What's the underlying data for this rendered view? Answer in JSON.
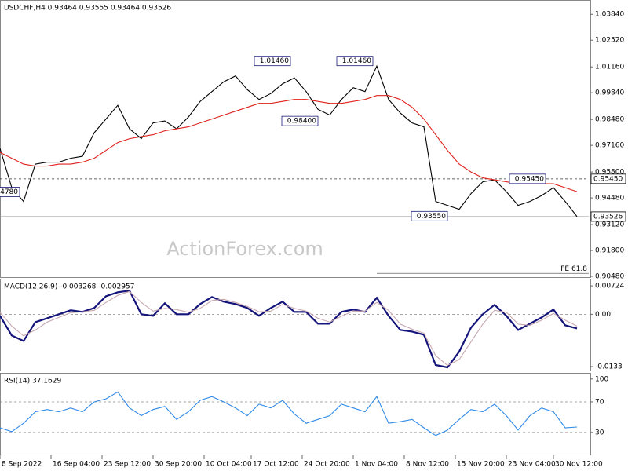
{
  "chart_data": [
    {
      "type": "line",
      "title": "USDCHF,H4 0.93464 0.93555 0.93464 0.93526",
      "watermark": "ActionForex.com",
      "x": [
        0,
        3,
        6,
        9,
        12,
        15,
        18,
        21,
        24,
        27,
        30,
        33,
        36,
        39,
        42,
        45,
        48,
        51,
        54,
        57,
        60,
        63,
        66,
        69,
        72,
        75,
        78,
        81,
        84,
        87,
        90,
        93,
        96,
        99,
        102,
        105,
        108,
        111,
        114,
        117,
        120,
        123,
        126,
        129,
        132,
        135,
        138,
        141,
        144,
        147
      ],
      "series": [
        {
          "color": "#000000",
          "values": [
            0.97,
            0.95,
            0.943,
            0.962,
            0.963,
            0.963,
            0.965,
            0.966,
            0.978,
            0.985,
            0.992,
            0.98,
            0.975,
            0.983,
            0.984,
            0.98,
            0.986,
            0.994,
            0.999,
            1.004,
            1.007,
            1.0,
            0.995,
            0.998,
            1.003,
            1.006,
            0.999,
            0.99,
            0.987,
            0.995,
            1.001,
            0.999,
            1.012,
            0.995,
            0.988,
            0.983,
            0.981,
            0.943,
            0.941,
            0.939,
            0.947,
            0.953,
            0.954,
            0.948,
            0.941,
            0.943,
            0.946,
            0.95,
            0.943,
            0.9353
          ]
        },
        {
          "color": "#e0201b",
          "values": [
            0.968,
            0.965,
            0.962,
            0.961,
            0.961,
            0.962,
            0.962,
            0.963,
            0.965,
            0.969,
            0.973,
            0.975,
            0.976,
            0.977,
            0.979,
            0.98,
            0.981,
            0.983,
            0.985,
            0.987,
            0.989,
            0.991,
            0.993,
            0.993,
            0.994,
            0.995,
            0.995,
            0.994,
            0.993,
            0.993,
            0.994,
            0.995,
            0.997,
            0.997,
            0.995,
            0.991,
            0.985,
            0.977,
            0.969,
            0.962,
            0.958,
            0.955,
            0.954,
            0.953,
            0.952,
            0.952,
            0.952,
            0.952,
            0.95,
            0.948
          ]
        }
      ],
      "xlim": [
        0,
        150
      ],
      "ylim": [
        0.904,
        1.0453
      ],
      "yticks": [
        {
          "value": 1.0384,
          "label": "1.03840"
        },
        {
          "value": 1.0252,
          "label": "1.02520"
        },
        {
          "value": 1.0116,
          "label": "1.01160"
        },
        {
          "value": 0.9984,
          "label": "0.99840"
        },
        {
          "value": 0.9848,
          "label": "0.98480"
        },
        {
          "value": 0.9716,
          "label": "0.97160"
        },
        {
          "value": 0.958,
          "label": "0.95800"
        },
        {
          "value": 0.9448,
          "label": "0.94480"
        },
        {
          "value": 0.9312,
          "label": "0.93120"
        },
        {
          "value": 0.918,
          "label": "0.91800"
        },
        {
          "value": 0.9048,
          "label": "0.90480"
        }
      ],
      "hlines": [
        {
          "value": 0.9545,
          "label": "0.95450",
          "dashed": true
        },
        {
          "value": 0.93526,
          "label": "0.93526",
          "dashed": false
        }
      ],
      "fibo": {
        "label": "FE 61.8",
        "value": 0.9063,
        "x0": 96,
        "x1": 150
      },
      "annotations": [
        {
          "text": "1.01460",
          "x": 74,
          "y": 1.0146
        },
        {
          "text": "1.01460",
          "x": 95,
          "y": 1.0146
        },
        {
          "text": "0.98400",
          "x": 81,
          "y": 0.984
        },
        {
          "text": "0.95450",
          "x": 139,
          "y": 0.9545
        },
        {
          "text": "0.93550",
          "x": 114,
          "y": 0.9355
        },
        {
          "text": "4780",
          "x": 5,
          "y": 0.9478
        }
      ]
    },
    {
      "type": "line",
      "title": "MACD(12,26,9) -0.003268 -0.002957",
      "x": [
        0,
        3,
        6,
        9,
        12,
        15,
        18,
        21,
        24,
        27,
        30,
        33,
        36,
        39,
        42,
        45,
        48,
        51,
        54,
        57,
        60,
        63,
        66,
        69,
        72,
        75,
        78,
        81,
        84,
        87,
        90,
        93,
        96,
        99,
        102,
        105,
        108,
        111,
        114,
        117,
        120,
        123,
        126,
        129,
        132,
        135,
        138,
        141,
        144,
        147
      ],
      "series": [
        {
          "color": "#14147a",
          "values": [
            -0.0004,
            -0.0054,
            -0.0068,
            -0.002,
            -0.001,
            0,
            0.001,
            0.0006,
            0.0016,
            0.0046,
            0.0056,
            0.006,
            0,
            -0.0004,
            0.0028,
            0,
            0,
            0.0026,
            0.0044,
            0.0032,
            0.0026,
            0.0016,
            -0.0004,
            0.0016,
            0.0032,
            0.0006,
            0.0006,
            -0.0024,
            -0.0024,
            0.0006,
            0.0012,
            0.0006,
            0.0042,
            -0.0004,
            -0.004,
            -0.0044,
            -0.0052,
            -0.0129,
            -0.0135,
            -0.0095,
            -0.0034,
            0,
            0.0024,
            -0.0004,
            -0.004,
            -0.0024,
            -0.0008,
            0.0012,
            -0.0028,
            -0.0036
          ]
        },
        {
          "color": "#c8a8b0",
          "values": [
            0.0005,
            -0.003,
            -0.0055,
            -0.004,
            -0.002,
            -0.0008,
            0.0004,
            0.0006,
            0.001,
            0.003,
            0.0048,
            0.0058,
            0.003,
            0.0008,
            0.0015,
            0.0012,
            0.0005,
            0.0015,
            0.0035,
            0.0038,
            0.003,
            0.002,
            0.0006,
            0.0008,
            0.0025,
            0.0015,
            0.0008,
            -0.001,
            -0.002,
            -0.0005,
            0.0008,
            0.0008,
            0.003,
            0.001,
            -0.0025,
            -0.0038,
            -0.0048,
            -0.0105,
            -0.013,
            -0.0115,
            -0.007,
            -0.0025,
            0.001,
            0.0005,
            -0.0025,
            -0.0028,
            -0.0015,
            0.0002,
            -0.0015,
            -0.003
          ]
        }
      ],
      "xlim": [
        0,
        150
      ],
      "ylim": [
        -0.0145,
        0.00885
      ],
      "yticks": [
        0.00724,
        {
          "value": 0,
          "label": "0.00"
        },
        -0.0133
      ],
      "levels": [
        0
      ]
    },
    {
      "type": "line",
      "title": "RSI(14) 37.1629",
      "x": [
        0,
        3,
        6,
        9,
        12,
        15,
        18,
        21,
        24,
        27,
        30,
        33,
        36,
        39,
        42,
        45,
        48,
        51,
        54,
        57,
        60,
        63,
        66,
        69,
        72,
        75,
        78,
        81,
        84,
        87,
        90,
        93,
        96,
        99,
        102,
        105,
        108,
        111,
        114,
        117,
        120,
        123,
        126,
        129,
        132,
        135,
        138,
        141,
        144,
        147
      ],
      "series": [
        {
          "color": "#2f8ae8",
          "values": [
            36,
            31,
            42,
            57,
            60,
            57,
            62,
            57,
            70,
            74,
            83,
            62,
            52,
            60,
            64,
            47,
            57,
            72,
            77,
            70,
            62,
            52,
            67,
            62,
            72,
            54,
            42,
            47,
            52,
            67,
            62,
            57,
            77,
            42,
            44,
            47,
            36,
            26,
            33,
            47,
            60,
            57,
            67,
            52,
            33,
            52,
            62,
            57,
            36,
            37
          ]
        }
      ],
      "xlim": [
        0,
        150
      ],
      "ylim": [
        0,
        107
      ],
      "yticks": [
        100,
        70,
        30
      ],
      "levels": [
        70,
        30
      ],
      "xticks": [
        {
          "value": 0,
          "label": "8 Sep 2022"
        },
        {
          "value": 13,
          "label": "16 Sep 04:00"
        },
        {
          "value": 26,
          "label": "23 Sep 12:00"
        },
        {
          "value": 39,
          "label": "30 Sep 20:00"
        },
        {
          "value": 52,
          "label": "10 Oct 04:00"
        },
        {
          "value": 64,
          "label": "17 Oct 12:00"
        },
        {
          "value": 77,
          "label": "24 Oct 20:00"
        },
        {
          "value": 90,
          "label": "1 Nov 04:00"
        },
        {
          "value": 103,
          "label": "8 Nov 12:00"
        },
        {
          "value": 116,
          "label": "15 Nov 20:00"
        },
        {
          "value": 129,
          "label": "23 Nov 04:00"
        },
        {
          "value": 141,
          "label": "30 Nov 12:00"
        }
      ]
    }
  ]
}
